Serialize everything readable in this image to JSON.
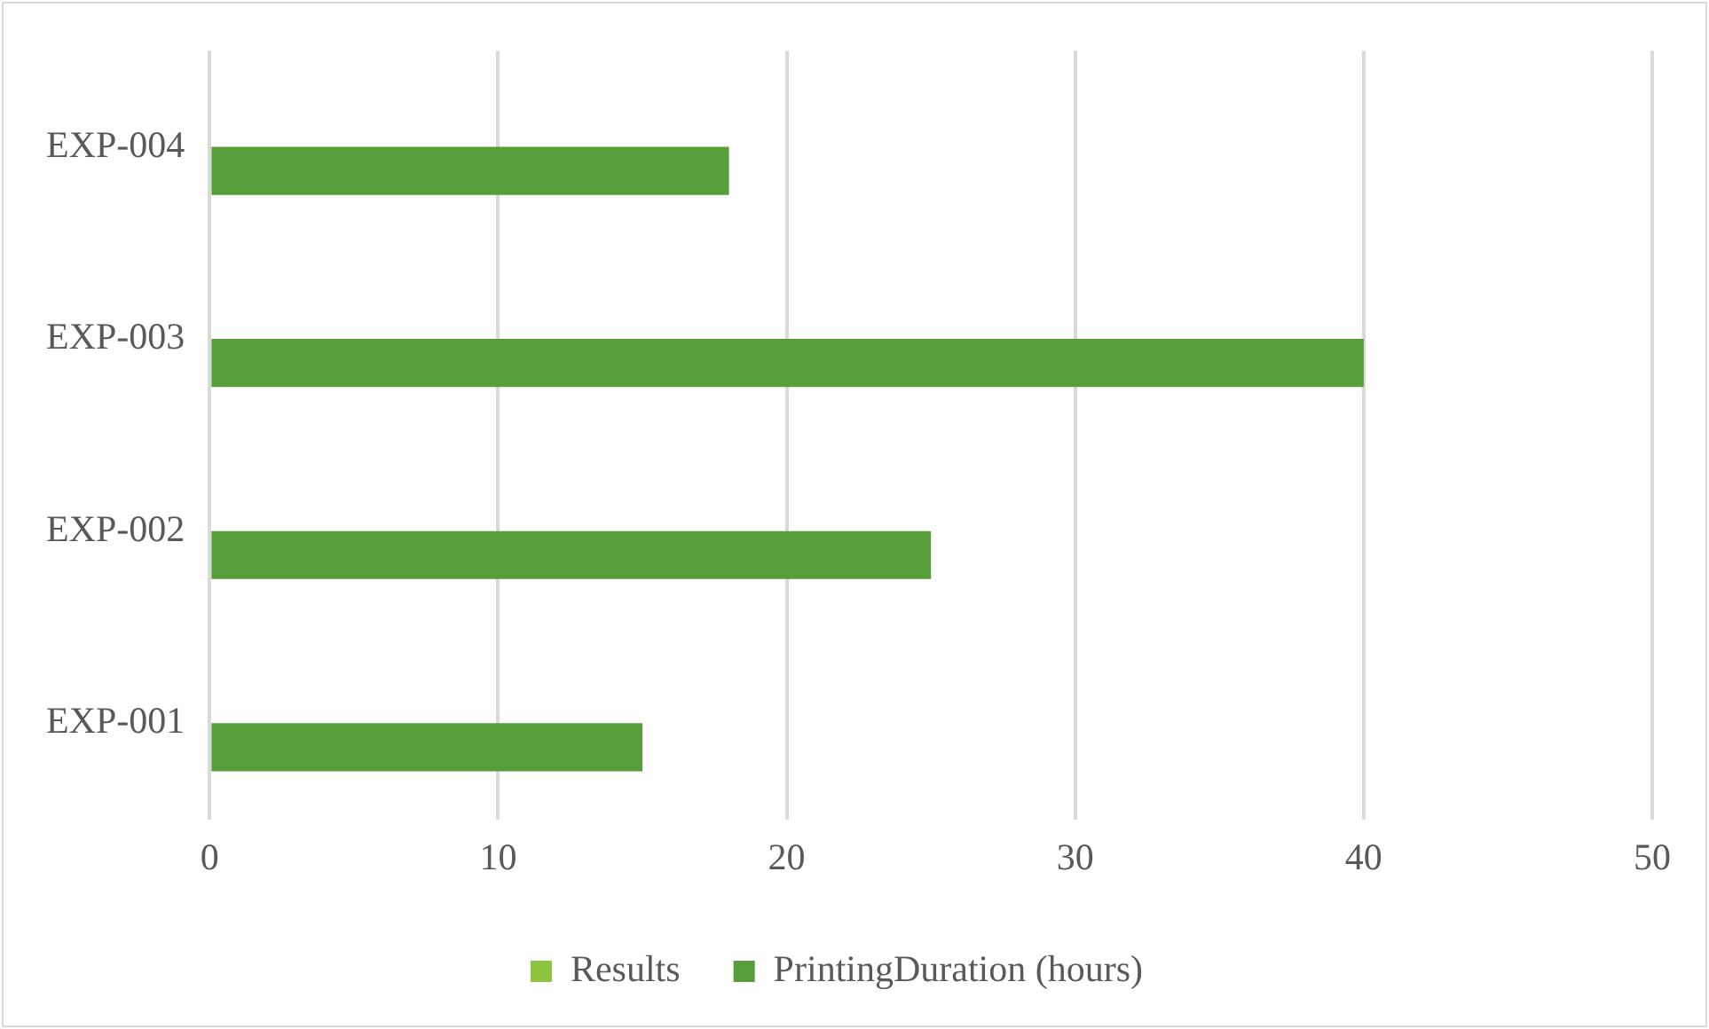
{
  "chart_data": {
    "type": "bar",
    "orientation": "horizontal",
    "categories": [
      "EXP-004",
      "EXP-003",
      "EXP-002",
      "EXP-001"
    ],
    "series": [
      {
        "name": "Results",
        "color": "#8cc43f",
        "values": [
          null,
          null,
          null,
          null
        ]
      },
      {
        "name": "PrintingDuration (hours)",
        "color": "#559e3a",
        "values": [
          18,
          40,
          25,
          15
        ]
      }
    ],
    "xlim": [
      0,
      50
    ],
    "xticks": [
      0,
      10,
      20,
      30,
      40,
      50
    ],
    "grid": "x",
    "legend": "bottom"
  }
}
